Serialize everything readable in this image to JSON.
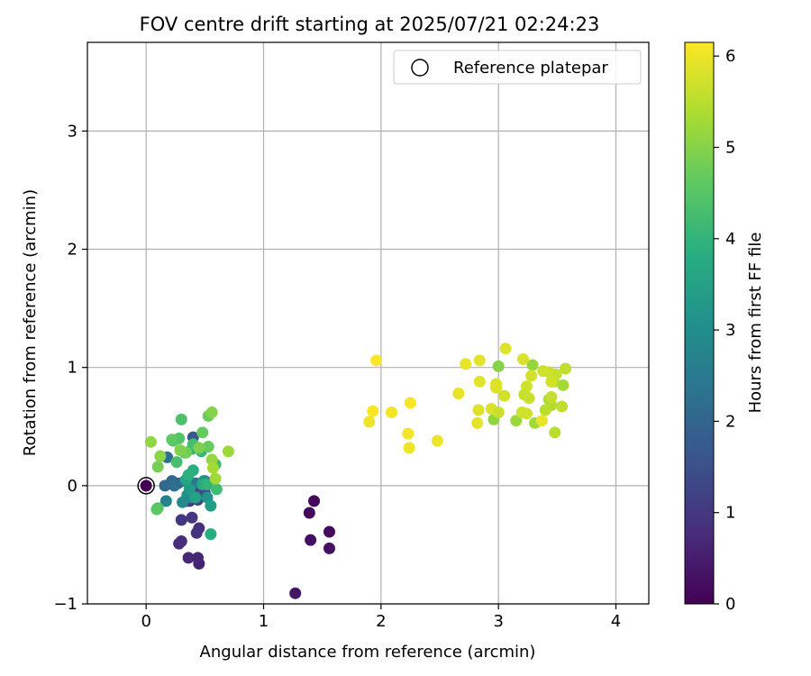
{
  "chart_data": {
    "type": "scatter",
    "title": "FOV centre drift starting at 2025/07/21 02:24:23",
    "xlabel": "Angular distance from reference (arcmin)",
    "ylabel": "Rotation from reference (arcmin)",
    "xlim": [
      -0.5,
      4.28
    ],
    "ylim": [
      -1.0,
      3.75
    ],
    "xticks": [
      0,
      1,
      2,
      3,
      4
    ],
    "xtick_labels": [
      "0",
      "1",
      "2",
      "3",
      "4"
    ],
    "yticks": [
      -1,
      0,
      1,
      2,
      3
    ],
    "ytick_labels": [
      "−1",
      "0",
      "1",
      "2",
      "3"
    ],
    "grid": true,
    "legend": {
      "position": "top-right",
      "entries": [
        "Reference platepar"
      ]
    },
    "colorbar": {
      "label": "Hours from first FF file",
      "colormap": "viridis",
      "range": [
        0,
        6.15
      ],
      "ticks": [
        0,
        1,
        2,
        3,
        4,
        5,
        6
      ],
      "tick_labels": [
        "0",
        "1",
        "2",
        "3",
        "4",
        "5",
        "6"
      ]
    },
    "reference_point": {
      "x": 0,
      "y": 0
    },
    "points": [
      [
        0.0,
        0.0,
        0.0
      ],
      [
        1.43,
        -0.13,
        0.1
      ],
      [
        1.39,
        -0.23,
        0.15
      ],
      [
        1.56,
        -0.39,
        0.2
      ],
      [
        1.4,
        -0.46,
        0.25
      ],
      [
        1.56,
        -0.53,
        0.3
      ],
      [
        1.27,
        -0.91,
        0.35
      ],
      [
        0.45,
        -0.66,
        0.6
      ],
      [
        0.44,
        -0.61,
        0.65
      ],
      [
        0.36,
        -0.61,
        0.7
      ],
      [
        0.28,
        -0.49,
        0.75
      ],
      [
        0.3,
        -0.47,
        0.8
      ],
      [
        0.45,
        -0.36,
        0.85
      ],
      [
        0.43,
        -0.4,
        0.9
      ],
      [
        0.39,
        -0.27,
        0.95
      ],
      [
        0.3,
        -0.29,
        1.0
      ],
      [
        0.37,
        -0.13,
        1.05
      ],
      [
        0.34,
        -0.13,
        1.1
      ],
      [
        0.4,
        -0.06,
        1.2
      ],
      [
        0.44,
        -0.12,
        1.3
      ],
      [
        0.5,
        -0.06,
        1.4
      ],
      [
        0.46,
        0.0,
        1.5
      ],
      [
        0.42,
        0.02,
        1.6
      ],
      [
        0.4,
        0.41,
        1.7
      ],
      [
        0.5,
        0.04,
        1.8
      ],
      [
        0.27,
        0.02,
        1.9
      ],
      [
        0.22,
        0.04,
        2.0
      ],
      [
        0.16,
        0.0,
        2.1
      ],
      [
        0.24,
        0.0,
        2.2
      ],
      [
        0.18,
        0.24,
        2.3
      ],
      [
        0.33,
        0.04,
        2.4
      ],
      [
        0.4,
        0.02,
        2.5
      ],
      [
        0.17,
        -0.13,
        2.7
      ],
      [
        0.38,
        -0.1,
        2.8
      ],
      [
        0.31,
        -0.14,
        2.9
      ],
      [
        0.35,
        -0.08,
        3.0
      ],
      [
        0.52,
        -0.1,
        3.1
      ],
      [
        0.49,
        0.04,
        3.2
      ],
      [
        0.37,
        -0.03,
        3.3
      ],
      [
        0.55,
        -0.17,
        3.4
      ],
      [
        0.42,
        -0.1,
        3.5
      ],
      [
        0.34,
        0.05,
        3.6
      ],
      [
        0.48,
        0.01,
        3.7
      ],
      [
        0.55,
        -0.41,
        3.8
      ],
      [
        0.4,
        0.13,
        3.85
      ],
      [
        0.36,
        0.09,
        3.9
      ],
      [
        0.33,
        0.28,
        3.95
      ],
      [
        0.52,
        0.01,
        4.0
      ],
      [
        0.39,
        0.31,
        4.05
      ],
      [
        0.47,
        0.29,
        4.1
      ],
      [
        0.59,
        0.18,
        4.15
      ],
      [
        0.6,
        -0.03,
        4.2
      ],
      [
        0.4,
        0.35,
        4.25
      ],
      [
        0.26,
        0.2,
        4.3
      ],
      [
        0.3,
        0.56,
        4.35
      ],
      [
        0.23,
        0.38,
        4.4
      ],
      [
        0.28,
        0.4,
        4.45
      ],
      [
        0.1,
        -0.19,
        4.5
      ],
      [
        0.09,
        -0.2,
        4.55
      ],
      [
        0.22,
        0.39,
        4.6
      ],
      [
        0.48,
        0.45,
        4.65
      ],
      [
        0.53,
        0.33,
        4.7
      ],
      [
        0.53,
        0.59,
        4.75
      ],
      [
        0.34,
        0.28,
        4.8
      ],
      [
        0.1,
        0.16,
        4.85
      ],
      [
        0.45,
        0.32,
        4.9
      ],
      [
        0.29,
        0.3,
        4.95
      ],
      [
        0.56,
        0.62,
        5.0
      ],
      [
        0.12,
        0.25,
        5.05
      ],
      [
        0.04,
        0.37,
        5.1
      ],
      [
        0.56,
        0.22,
        5.15
      ],
      [
        0.7,
        0.29,
        5.2
      ],
      [
        0.59,
        0.06,
        5.25
      ],
      [
        0.57,
        0.15,
        5.3
      ],
      [
        3.0,
        1.01,
        5.0
      ],
      [
        2.96,
        0.56,
        5.1
      ],
      [
        3.29,
        1.02,
        5.15
      ],
      [
        3.15,
        0.55,
        5.2
      ],
      [
        3.31,
        0.53,
        5.25
      ],
      [
        3.55,
        0.85,
        5.3
      ],
      [
        3.43,
        0.73,
        5.35
      ],
      [
        3.47,
        0.88,
        5.4
      ],
      [
        3.45,
        0.68,
        5.45
      ],
      [
        3.4,
        0.64,
        5.5
      ],
      [
        3.54,
        0.67,
        5.55
      ],
      [
        3.22,
        0.77,
        5.6
      ],
      [
        3.26,
        0.74,
        5.65
      ],
      [
        3.2,
        0.62,
        5.7
      ],
      [
        3.05,
        0.76,
        5.75
      ],
      [
        2.94,
        0.65,
        5.8
      ],
      [
        2.83,
        0.64,
        5.85
      ],
      [
        2.82,
        0.53,
        5.9
      ],
      [
        3.37,
        0.55,
        5.95
      ],
      [
        3.48,
        0.45,
        5.5
      ],
      [
        3.57,
        0.99,
        5.55
      ],
      [
        3.49,
        0.94,
        5.6
      ],
      [
        3.43,
        0.96,
        5.65
      ],
      [
        3.38,
        0.97,
        5.7
      ],
      [
        3.28,
        0.93,
        5.75
      ],
      [
        3.21,
        1.07,
        5.8
      ],
      [
        3.06,
        1.16,
        5.85
      ],
      [
        2.84,
        1.06,
        5.9
      ],
      [
        2.72,
        1.03,
        5.95
      ],
      [
        2.98,
        0.83,
        5.8
      ],
      [
        2.98,
        0.86,
        5.85
      ],
      [
        2.84,
        0.88,
        5.9
      ],
      [
        2.66,
        0.78,
        5.95
      ],
      [
        3.24,
        0.84,
        5.7
      ],
      [
        3.45,
        0.88,
        5.75
      ],
      [
        3.24,
        0.61,
        5.7
      ],
      [
        3.0,
        0.62,
        5.65
      ],
      [
        3.45,
        0.75,
        5.6
      ],
      [
        1.96,
        1.06,
        6.15
      ],
      [
        1.93,
        0.63,
        6.1
      ],
      [
        2.09,
        0.62,
        6.05
      ],
      [
        1.9,
        0.54,
        6.0
      ],
      [
        2.25,
        0.7,
        6.1
      ],
      [
        2.23,
        0.44,
        6.05
      ],
      [
        2.24,
        0.32,
        6.0
      ],
      [
        2.48,
        0.38,
        6.0
      ]
    ]
  }
}
